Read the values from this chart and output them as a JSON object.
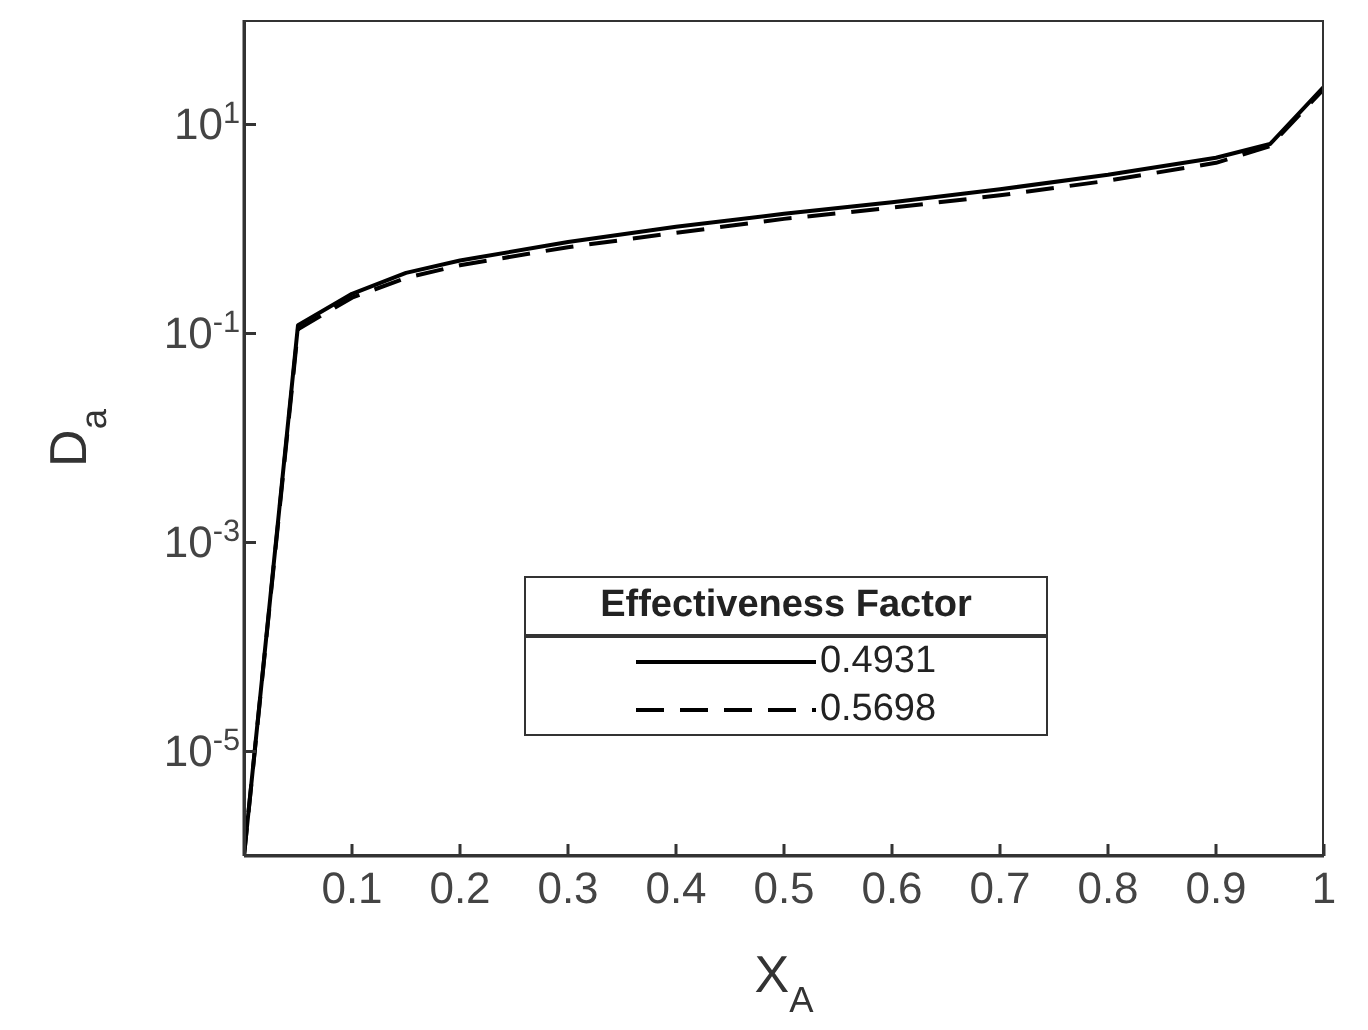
{
  "chart_data": {
    "type": "line",
    "xlabel": "X$_{A}$",
    "ylabel": "D$_{a}$",
    "log": "y",
    "xlim": [
      0,
      1
    ],
    "ylim": [
      1e-06,
      100
    ],
    "xticks": [
      0.1,
      0.2,
      0.3,
      0.4,
      0.5,
      0.6,
      0.7,
      0.8,
      0.9,
      1
    ],
    "yticks": [
      {
        "value": 1e-05,
        "label": "10$^{-5}$"
      },
      {
        "value": 0.001,
        "label": "10$^{-3}$"
      },
      {
        "value": 0.1,
        "label": "10$^{-1}$"
      },
      {
        "value": 10,
        "label": "10$^{1}$"
      }
    ],
    "x": [
      0,
      0.05,
      0.1,
      0.15,
      0.2,
      0.3,
      0.4,
      0.5,
      0.6,
      0.7,
      0.8,
      0.9,
      0.95,
      1
    ],
    "legend": "bottom",
    "legend_title": "Effectiveness Factor",
    "grid": false,
    "marker": "none",
    "series": [
      {
        "name": "0.4931",
        "color": "#000000",
        "line_style": "solid",
        "values": [
          1e-06,
          0.12,
          0.24,
          0.38,
          0.5,
          0.75,
          1.05,
          1.4,
          1.8,
          2.4,
          3.3,
          4.8,
          6.5,
          23
        ]
      },
      {
        "name": "0.5698",
        "color": "#000000",
        "line_style": "dashed",
        "values": [
          1e-06,
          0.11,
          0.22,
          0.34,
          0.45,
          0.67,
          0.92,
          1.25,
          1.6,
          2.1,
          2.9,
          4.3,
          6.2,
          22
        ]
      }
    ]
  }
}
